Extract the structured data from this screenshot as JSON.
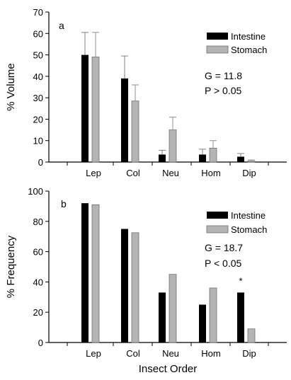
{
  "colors": {
    "intestine": "#000000",
    "stomach": "#b4b4b4",
    "stomach_edge": "#6e6e6e",
    "axis": "#000000"
  },
  "chart_data": [
    {
      "type": "bar",
      "panel": "a",
      "categories": [
        "Lep",
        "Col",
        "Neu",
        "Hom",
        "Dip"
      ],
      "series": [
        {
          "name": "Intestine",
          "values": [
            50,
            39,
            3.5,
            3.5,
            2.5
          ],
          "errors": [
            10.5,
            10.5,
            2,
            2.5,
            1.5
          ]
        },
        {
          "name": "Stomach",
          "values": [
            49,
            28.5,
            15,
            6.5,
            0.5
          ],
          "errors": [
            11.5,
            7.5,
            6,
            3.5,
            0.5
          ]
        }
      ],
      "ylabel": "% Volume",
      "xlabel": "",
      "ylim": [
        0,
        70
      ],
      "yticks": [
        0,
        10,
        20,
        30,
        40,
        50,
        60,
        70
      ],
      "legend_position": "top-right",
      "stats": {
        "line1": "G = 11.8",
        "line2": "P > 0.05"
      },
      "grid": false
    },
    {
      "type": "bar",
      "panel": "b",
      "categories": [
        "Lep",
        "Col",
        "Neu",
        "Hom",
        "Dip"
      ],
      "series": [
        {
          "name": "Intestine",
          "values": [
            92,
            75,
            33,
            25,
            33
          ]
        },
        {
          "name": "Stomach",
          "values": [
            91,
            72.5,
            45,
            36,
            9
          ]
        }
      ],
      "ylabel": "% Frequency",
      "xlabel": "Insect Order",
      "ylim": [
        0,
        100
      ],
      "yticks": [
        0,
        20,
        40,
        60,
        80,
        100
      ],
      "legend_position": "top-right",
      "stats": {
        "line1": "G = 18.7",
        "line2": "P < 0.05"
      },
      "annotations": [
        {
          "category": "Dip",
          "text": "*"
        }
      ],
      "grid": false
    }
  ]
}
